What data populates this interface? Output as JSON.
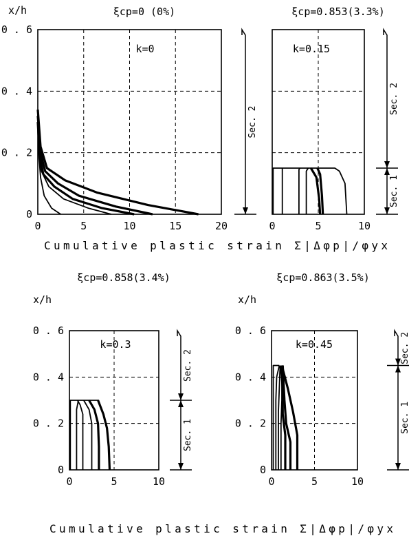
{
  "xlabel_top": "Cumulative plastic strain Σ|Δφp|/φyx",
  "xlabel_bottom": "Cumulative plastic strain Σ|Δφp|/φyx",
  "colors": {
    "line": "#000000",
    "background": "#ffffff"
  },
  "chart_data": [
    {
      "type": "line",
      "title": "ξcp=0 (0%)",
      "k_label": "k=0",
      "ylabel": "x/h",
      "xlim": [
        0,
        20
      ],
      "ylim": [
        0,
        0.6
      ],
      "xticks": [
        "0",
        "5",
        "10",
        "15",
        "20"
      ],
      "yticks": [
        "0",
        "0.2",
        "0.4",
        "0.6"
      ],
      "grid": true,
      "side_sections": [
        {
          "label": "Sec. 2",
          "from": 0,
          "to": 0.6
        }
      ],
      "series": [
        {
          "weight": "normal",
          "points": [
            [
              2.5,
              0
            ],
            [
              1.5,
              0.02
            ],
            [
              0.7,
              0.06
            ],
            [
              0.3,
              0.12
            ],
            [
              0.1,
              0.2
            ],
            [
              0,
              0.28
            ]
          ]
        },
        {
          "weight": "normal",
          "points": [
            [
              8,
              0
            ],
            [
              5.5,
              0.02
            ],
            [
              2.8,
              0.05
            ],
            [
              1.2,
              0.09
            ],
            [
              0.4,
              0.14
            ],
            [
              0.1,
              0.2
            ],
            [
              0,
              0.3
            ]
          ]
        },
        {
          "weight": "bold",
          "points": [
            [
              10.5,
              0
            ],
            [
              7,
              0.02
            ],
            [
              3.8,
              0.05
            ],
            [
              1.8,
              0.09
            ],
            [
              0.6,
              0.13
            ],
            [
              0.2,
              0.19
            ],
            [
              0,
              0.3
            ]
          ]
        },
        {
          "weight": "bold",
          "points": [
            [
              12.5,
              0
            ],
            [
              8.5,
              0.025
            ],
            [
              4.5,
              0.06
            ],
            [
              2.2,
              0.1
            ],
            [
              0.8,
              0.14
            ],
            [
              0.3,
              0.2
            ],
            [
              0,
              0.32
            ]
          ]
        },
        {
          "weight": "bold",
          "points": [
            [
              17.5,
              0
            ],
            [
              12,
              0.03
            ],
            [
              6.5,
              0.07
            ],
            [
              3,
              0.11
            ],
            [
              1,
              0.15
            ],
            [
              0.3,
              0.22
            ],
            [
              0,
              0.34
            ]
          ]
        }
      ]
    },
    {
      "type": "line",
      "title": "ξcp=0.853(3.3%)",
      "k_label": "k=0.15",
      "ylabel": "",
      "xlim": [
        0,
        10
      ],
      "ylim": [
        0,
        0.6
      ],
      "xticks": [
        "0",
        "5",
        "10"
      ],
      "yticks": [],
      "grid": true,
      "side_sections": [
        {
          "label": "Sec. 2",
          "from": 0.15,
          "to": 0.6
        },
        {
          "label": "Sec. 1",
          "from": 0,
          "to": 0.15
        }
      ],
      "series": [
        {
          "weight": "normal",
          "points": [
            [
              0.1,
              0
            ],
            [
              0.1,
              0.15
            ],
            [
              6.8,
              0.15
            ],
            [
              7.3,
              0.14
            ],
            [
              7.9,
              0.1
            ],
            [
              8,
              0.05
            ],
            [
              8.1,
              0
            ]
          ]
        },
        {
          "weight": "normal",
          "points": [
            [
              1.1,
              0
            ],
            [
              1.1,
              0.15
            ]
          ]
        },
        {
          "weight": "normal",
          "points": [
            [
              2.9,
              0
            ],
            [
              2.9,
              0.145
            ],
            [
              3,
              0.15
            ]
          ]
        },
        {
          "weight": "normal",
          "points": [
            [
              3.7,
              0
            ],
            [
              3.7,
              0.14
            ],
            [
              3.9,
              0.15
            ]
          ]
        },
        {
          "weight": "bold",
          "points": [
            [
              5.2,
              0
            ],
            [
              5.1,
              0.05
            ],
            [
              4.8,
              0.12
            ],
            [
              4.2,
              0.15
            ]
          ]
        },
        {
          "weight": "bold",
          "points": [
            [
              5.5,
              0
            ],
            [
              5.4,
              0.06
            ],
            [
              5.2,
              0.13
            ],
            [
              4.9,
              0.15
            ]
          ]
        }
      ]
    },
    {
      "type": "line",
      "title": "ξcp=0.858(3.4%)",
      "k_label": "k=0.3",
      "ylabel": "x/h",
      "xlim": [
        0,
        10
      ],
      "ylim": [
        0,
        0.6
      ],
      "xticks": [
        "0",
        "5",
        "10"
      ],
      "yticks": [
        "0",
        "0.2",
        "0.4",
        "0.6"
      ],
      "grid": true,
      "side_sections": [
        {
          "label": "Sec. 2",
          "from": 0.3,
          "to": 0.6
        },
        {
          "label": "Sec. 1",
          "from": 0,
          "to": 0.3
        }
      ],
      "series": [
        {
          "weight": "normal",
          "points": [
            [
              0.1,
              0
            ],
            [
              0.1,
              0.3
            ],
            [
              3.3,
              0.3
            ]
          ]
        },
        {
          "weight": "normal",
          "points": [
            [
              0.8,
              0
            ],
            [
              0.8,
              0.26
            ],
            [
              1,
              0.3
            ]
          ]
        },
        {
          "weight": "normal",
          "points": [
            [
              1.5,
              0
            ],
            [
              1.5,
              0.24
            ],
            [
              1.2,
              0.28
            ],
            [
              0.9,
              0.3
            ]
          ]
        },
        {
          "weight": "normal",
          "points": [
            [
              2.5,
              0
            ],
            [
              2.5,
              0.2
            ],
            [
              2.2,
              0.26
            ],
            [
              1.6,
              0.3
            ]
          ]
        },
        {
          "weight": "bold",
          "points": [
            [
              3.3,
              0
            ],
            [
              3.3,
              0.1
            ],
            [
              3.2,
              0.2
            ],
            [
              2.8,
              0.26
            ],
            [
              2.2,
              0.3
            ]
          ]
        },
        {
          "weight": "bold",
          "points": [
            [
              4.5,
              0
            ],
            [
              4.4,
              0.1
            ],
            [
              4.2,
              0.18
            ],
            [
              3.8,
              0.24
            ],
            [
              3.2,
              0.3
            ]
          ]
        }
      ]
    },
    {
      "type": "line",
      "title": "ξcp=0.863(3.5%)",
      "k_label": "k=0.45",
      "ylabel": "x/h",
      "xlim": [
        0,
        10
      ],
      "ylim": [
        0,
        0.6
      ],
      "xticks": [
        "0",
        "5",
        "10"
      ],
      "yticks": [
        "0",
        "0.2",
        "0.4",
        "0.6"
      ],
      "grid": true,
      "side_sections": [
        {
          "label": "Sec. 2",
          "from": 0.45,
          "to": 0.6
        },
        {
          "label": "Sec. 1",
          "from": 0,
          "to": 0.45
        }
      ],
      "series": [
        {
          "weight": "normal",
          "points": [
            [
              0.2,
              0
            ],
            [
              0.2,
              0.45
            ],
            [
              0.9,
              0.45
            ]
          ]
        },
        {
          "weight": "normal",
          "points": [
            [
              0.5,
              0
            ],
            [
              0.5,
              0.3
            ],
            [
              0.6,
              0.4
            ],
            [
              0.9,
              0.45
            ]
          ]
        },
        {
          "weight": "normal",
          "points": [
            [
              0.8,
              0
            ],
            [
              0.8,
              0.25
            ],
            [
              0.9,
              0.35
            ],
            [
              1,
              0.45
            ]
          ]
        },
        {
          "weight": "normal",
          "points": [
            [
              1.1,
              0
            ],
            [
              1.1,
              0.2
            ],
            [
              1.2,
              0.3
            ],
            [
              1.2,
              0.45
            ]
          ]
        },
        {
          "weight": "bold",
          "points": [
            [
              1.6,
              0
            ],
            [
              1.6,
              0.15
            ],
            [
              1.3,
              0.24
            ],
            [
              1.3,
              0.35
            ],
            [
              1.1,
              0.45
            ]
          ]
        },
        {
          "weight": "bold",
          "points": [
            [
              2.2,
              0
            ],
            [
              2.2,
              0.12
            ],
            [
              1.7,
              0.2
            ],
            [
              1.5,
              0.3
            ],
            [
              1.3,
              0.45
            ]
          ]
        },
        {
          "weight": "bold",
          "points": [
            [
              3,
              0
            ],
            [
              3,
              0.15
            ],
            [
              2.5,
              0.25
            ],
            [
              1.9,
              0.35
            ],
            [
              1.2,
              0.45
            ]
          ]
        }
      ]
    }
  ]
}
